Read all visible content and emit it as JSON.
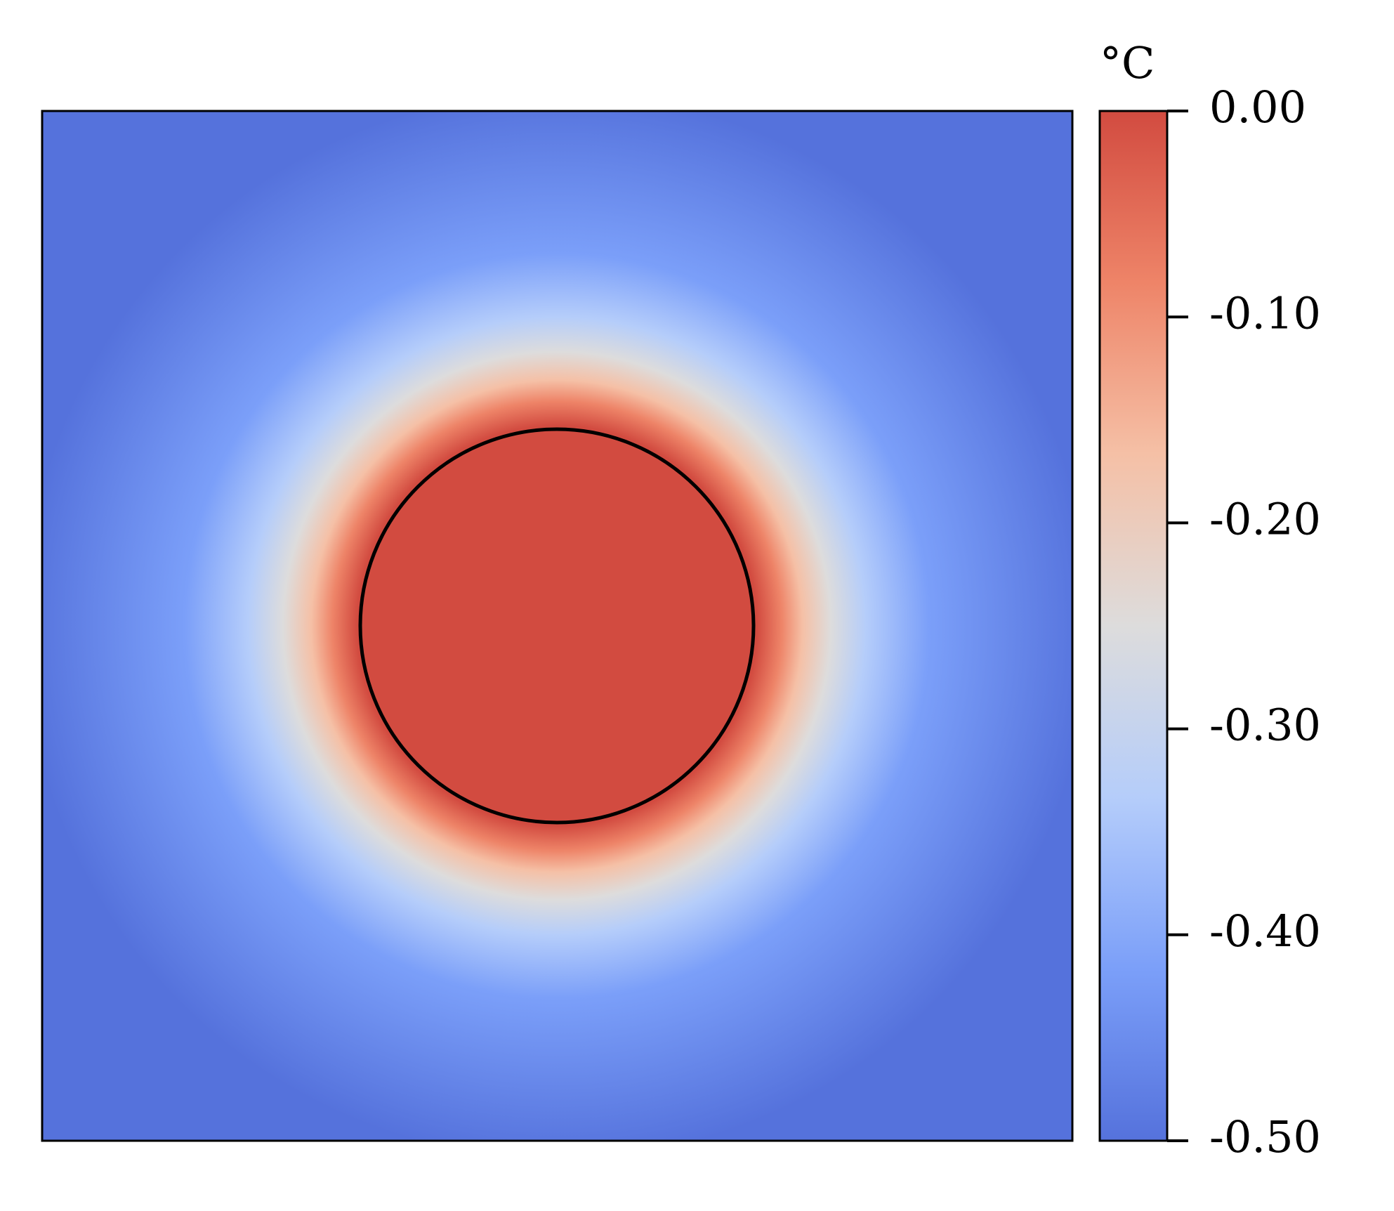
{
  "chart_data": {
    "type": "heatmap",
    "colorbar_label": "°C",
    "clim": [
      -0.5,
      0
    ],
    "colormap": [
      "#5572dc",
      "#7b9ff9",
      "#b5cdfa",
      "#dddcdc",
      "#f5c0a6",
      "#ee8468",
      "#d24b40"
    ],
    "cticks": [
      {
        "value": 0,
        "label": "0.00"
      },
      {
        "value": -0.1,
        "label": "-0.10"
      },
      {
        "value": -0.2,
        "label": "-0.20"
      },
      {
        "value": -0.3,
        "label": "-0.30"
      },
      {
        "value": -0.4,
        "label": "-0.40"
      },
      {
        "value": -0.5,
        "label": "-0.50"
      }
    ]
  }
}
